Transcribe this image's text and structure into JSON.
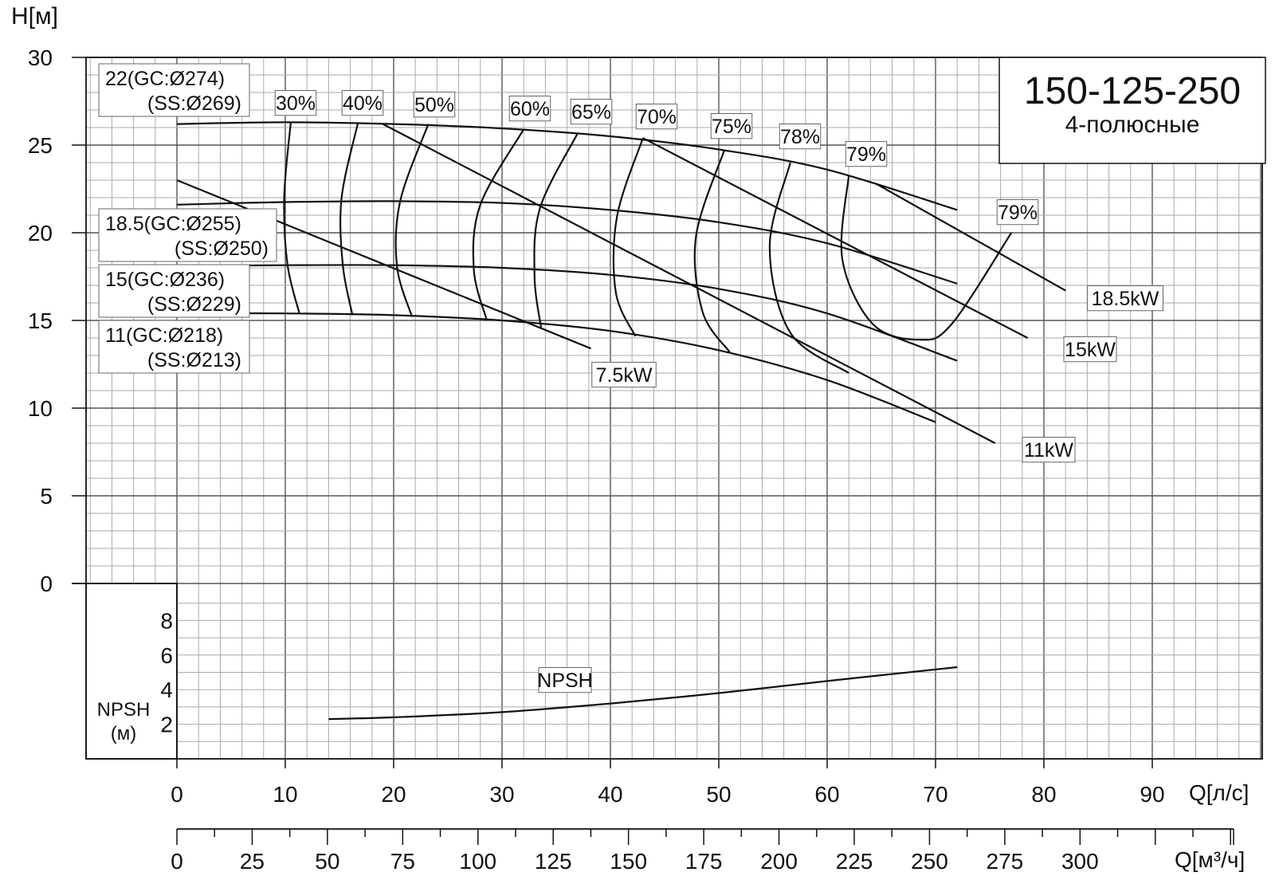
{
  "chart_data": {
    "type": "line",
    "title": "150-125-250",
    "subtitle": "4-полюсные",
    "ylabel": "H[м]",
    "xlabel": "Q[л/с]",
    "xlabel2": "Q[м³/ч]",
    "npsh_label": "NPSH",
    "npsh_unit": "(м)",
    "ylim": [
      0,
      30
    ],
    "xlim": [
      0,
      100
    ],
    "y_ticks": [
      "30",
      "25",
      "20",
      "15",
      "10",
      "5",
      "0"
    ],
    "x_ticks": [
      "0",
      "10",
      "20",
      "30",
      "40",
      "50",
      "60",
      "70",
      "80",
      "90"
    ],
    "x2_ticks": [
      "0",
      "25",
      "50",
      "75",
      "100",
      "125",
      "150",
      "175",
      "200",
      "225",
      "250",
      "275",
      "300"
    ],
    "npsh_ticks": [
      "8",
      "6",
      "4",
      "2"
    ],
    "grid": true,
    "impeller_labels": [
      {
        "line1": "22(GC:Ø274)",
        "line2": "(SS:Ø269)"
      },
      {
        "line1": "18.5(GC:Ø255)",
        "line2": "(SS:Ø250)"
      },
      {
        "line1": "15(GC:Ø236)",
        "line2": "(SS:Ø229)"
      },
      {
        "line1": "11(GC:Ø218)",
        "line2": "(SS:Ø213)"
      }
    ],
    "head_curves": [
      {
        "name": "22",
        "x": [
          0,
          10,
          20,
          30,
          40,
          50,
          60,
          72
        ],
        "y": [
          26.2,
          26.3,
          26.2,
          25.95,
          25.5,
          24.75,
          23.6,
          21.3
        ]
      },
      {
        "name": "18.5",
        "x": [
          0,
          10,
          20,
          30,
          40,
          50,
          60,
          72
        ],
        "y": [
          21.6,
          21.75,
          21.8,
          21.7,
          21.3,
          20.6,
          19.4,
          17.1
        ]
      },
      {
        "name": "15",
        "x": [
          0,
          10,
          20,
          30,
          40,
          50,
          60,
          72
        ],
        "y": [
          18.1,
          18.15,
          18.15,
          18.0,
          17.6,
          16.8,
          15.4,
          12.7
        ]
      },
      {
        "name": "11",
        "x": [
          0,
          10,
          20,
          30,
          40,
          50,
          60,
          70
        ],
        "y": [
          15.4,
          15.4,
          15.3,
          15.0,
          14.4,
          13.3,
          11.6,
          9.2
        ]
      }
    ],
    "power_lines": [
      {
        "name": "7.5kW",
        "x": [
          0,
          38.2
        ],
        "y": [
          23.0,
          13.4
        ]
      },
      {
        "name": "11kW",
        "x": [
          19,
          75.5
        ],
        "y": [
          26.2,
          8.0
        ]
      },
      {
        "name": "15kW",
        "x": [
          43,
          78.5
        ],
        "y": [
          25.4,
          14.0
        ]
      },
      {
        "name": "18.5kW",
        "x": [
          64.5,
          82
        ],
        "y": [
          22.8,
          16.7
        ]
      }
    ],
    "efficiency_labels": [
      "30%",
      "40%",
      "50%",
      "60%",
      "65%",
      "70%",
      "75%",
      "78%",
      "79%",
      "79%"
    ],
    "efficiency_curves": [
      {
        "name": "30%",
        "x": [
          10.5,
          9.9,
          10.2,
          11.3
        ],
        "y": [
          26.25,
          22.0,
          18.2,
          15.4
        ]
      },
      {
        "name": "40%",
        "x": [
          16.7,
          15.2,
          15.3,
          16.2
        ],
        "y": [
          26.25,
          22.0,
          18.2,
          15.3
        ]
      },
      {
        "name": "50%",
        "x": [
          23.2,
          20.6,
          20.3,
          21.7
        ],
        "y": [
          26.2,
          21.8,
          18.1,
          15.2
        ]
      },
      {
        "name": "60%",
        "x": [
          32,
          28,
          27.4,
          28.6
        ],
        "y": [
          25.9,
          21.6,
          17.9,
          15.0
        ]
      },
      {
        "name": "65%",
        "x": [
          37,
          33.5,
          33,
          33.6
        ],
        "y": [
          25.7,
          21.4,
          17.5,
          14.6
        ]
      },
      {
        "name": "70%",
        "x": [
          43,
          40.6,
          40.5,
          42.3
        ],
        "y": [
          25.4,
          20.9,
          16.6,
          14.1
        ]
      },
      {
        "name": "75%",
        "x": [
          50.5,
          47.9,
          48.5,
          51
        ],
        "y": [
          24.7,
          19.8,
          15.5,
          13.2
        ]
      },
      {
        "name": "78%",
        "x": [
          56.6,
          54.7,
          56.6,
          62
        ],
        "y": [
          24.0,
          19.2,
          14.3,
          12.0
        ]
      },
      {
        "name": "79%",
        "x": [
          62,
          61.4,
          64.2,
          68.5,
          71.5,
          77
        ],
        "y": [
          23.3,
          18.5,
          14.8,
          13.9,
          14.8,
          20.0
        ]
      }
    ],
    "npsh": {
      "name": "NPSH",
      "x": [
        14,
        20,
        30,
        40,
        50,
        60,
        72
      ],
      "y": [
        2.3,
        2.4,
        2.7,
        3.2,
        3.8,
        4.5,
        5.3
      ]
    }
  }
}
